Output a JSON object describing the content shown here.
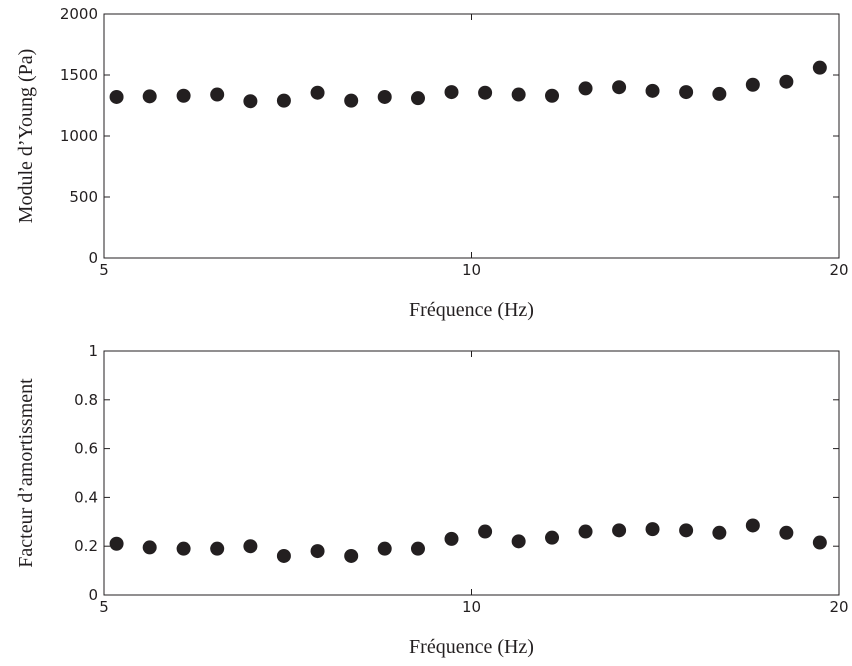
{
  "chart_data": [
    {
      "type": "scatter",
      "xlabel": "Fréquence (Hz)",
      "ylabel": "Module d’Young (Pa)",
      "xscale": "log",
      "xlim": [
        5,
        20
      ],
      "xticks": [
        5,
        10,
        20
      ],
      "ylim": [
        0,
        2000
      ],
      "yticks": [
        0,
        500,
        1000,
        1500,
        2000
      ],
      "color": "#231f20",
      "x": [
        5.12,
        5.45,
        5.81,
        6.19,
        6.59,
        7.02,
        7.48,
        7.97,
        8.49,
        9.04,
        9.63,
        10.26,
        10.93,
        11.64,
        12.4,
        13.21,
        14.07,
        14.99,
        15.96,
        17.0,
        18.11,
        19.29
      ],
      "values": [
        1320,
        1325,
        1330,
        1340,
        1285,
        1290,
        1355,
        1290,
        1320,
        1310,
        1360,
        1355,
        1340,
        1330,
        1390,
        1400,
        1370,
        1360,
        1345,
        1420,
        1445,
        1560
      ]
    },
    {
      "type": "scatter",
      "xlabel": "Fréquence (Hz)",
      "ylabel": "Facteur d’amortissment",
      "xscale": "log",
      "xlim": [
        5,
        20
      ],
      "xticks": [
        5,
        10,
        20
      ],
      "ylim": [
        0,
        1
      ],
      "yticks": [
        0,
        0.2,
        0.4,
        0.6,
        0.8,
        1
      ],
      "color": "#231f20",
      "x": [
        5.12,
        5.45,
        5.81,
        6.19,
        6.59,
        7.02,
        7.48,
        7.97,
        8.49,
        9.04,
        9.63,
        10.26,
        10.93,
        11.64,
        12.4,
        13.21,
        14.07,
        14.99,
        15.96,
        17.0,
        18.11,
        19.29
      ],
      "values": [
        0.21,
        0.195,
        0.19,
        0.19,
        0.2,
        0.16,
        0.18,
        0.16,
        0.19,
        0.19,
        0.23,
        0.26,
        0.22,
        0.235,
        0.26,
        0.265,
        0.27,
        0.265,
        0.255,
        0.285,
        0.255,
        0.215
      ]
    }
  ]
}
